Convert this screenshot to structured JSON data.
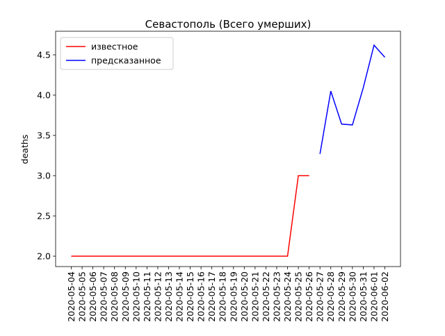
{
  "chart_data": {
    "type": "line",
    "title": "Севастополь (Всего умерших)",
    "y_label": "deaths",
    "categories": [
      "2020-05-04",
      "2020-05-05",
      "2020-05-06",
      "2020-05-07",
      "2020-05-08",
      "2020-05-09",
      "2020-05-10",
      "2020-05-11",
      "2020-05-12",
      "2020-05-13",
      "2020-05-14",
      "2020-05-15",
      "2020-05-16",
      "2020-05-17",
      "2020-05-18",
      "2020-05-19",
      "2020-05-20",
      "2020-05-21",
      "2020-05-22",
      "2020-05-23",
      "2020-05-24",
      "2020-05-25",
      "2020-05-26",
      "2020-05-27",
      "2020-05-28",
      "2020-05-29",
      "2020-05-30",
      "2020-05-31",
      "2020-06-01",
      "2020-06-02"
    ],
    "series": [
      {
        "name": "известное",
        "color": "#ff0000",
        "values": [
          2,
          2,
          2,
          2,
          2,
          2,
          2,
          2,
          2,
          2,
          2,
          2,
          2,
          2,
          2,
          2,
          2,
          2,
          2,
          2,
          2,
          3,
          3,
          null,
          null,
          null,
          null,
          null,
          null,
          null
        ]
      },
      {
        "name": "предсказанное",
        "color": "#0000ff",
        "values": [
          null,
          null,
          null,
          null,
          null,
          null,
          null,
          null,
          null,
          null,
          null,
          null,
          null,
          null,
          null,
          null,
          null,
          null,
          null,
          null,
          null,
          null,
          null,
          3.27,
          4.05,
          3.64,
          3.63,
          4.09,
          4.62,
          4.47
        ]
      }
    ],
    "ylim": [
      1.871,
      4.793
    ],
    "yticks": [
      {
        "value": 2,
        "label": "2.0"
      },
      2.5,
      {
        "value": 3,
        "label": "3.0"
      },
      3.5,
      {
        "value": 4,
        "label": "4.0"
      },
      4.5
    ],
    "legend": "upper left"
  }
}
